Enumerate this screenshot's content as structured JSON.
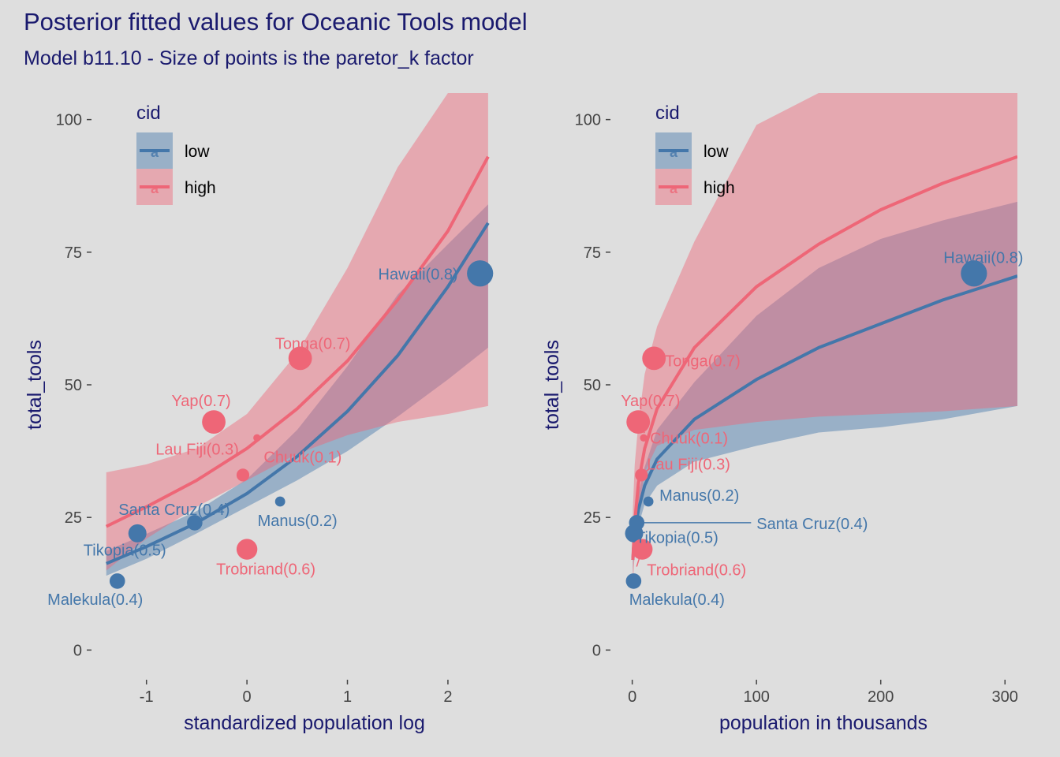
{
  "title": "Posterior fitted values for Oceanic Tools model",
  "subtitle": "Model b11.10 - Size of points is the paretor_k factor",
  "colors": {
    "low": "#4477aa",
    "high": "#ee6677"
  },
  "legend": {
    "title": "cid",
    "entries": [
      "low",
      "high"
    ],
    "key_letter": "a",
    "position": "top-left"
  },
  "chart_data": [
    {
      "type": "scatter",
      "xlabel": "standardized population log",
      "ylabel": "total_tools",
      "xlim": [
        -1.5,
        2.55
      ],
      "ylim": [
        -5,
        105
      ],
      "xticks": [
        -1,
        0,
        1,
        2
      ],
      "yticks": [
        0,
        25,
        50,
        75,
        100
      ],
      "grid": false,
      "points": [
        {
          "label": "Malekula(0.4)",
          "group": "low",
          "x": -1.29,
          "y": 13,
          "k": 0.4
        },
        {
          "label": "Tikopia(0.5)",
          "group": "low",
          "x": -1.09,
          "y": 22,
          "k": 0.5
        },
        {
          "label": "Santa Cruz(0.4)",
          "group": "low",
          "x": -0.52,
          "y": 24,
          "k": 0.4
        },
        {
          "label": "Yap(0.7)",
          "group": "high",
          "x": -0.33,
          "y": 43,
          "k": 0.7
        },
        {
          "label": "Lau Fiji(0.3)",
          "group": "high",
          "x": -0.04,
          "y": 33,
          "k": 0.3
        },
        {
          "label": "Trobriand(0.6)",
          "group": "high",
          "x": 0.0,
          "y": 19,
          "k": 0.6
        },
        {
          "label": "Chuuk(0.1)",
          "group": "high",
          "x": 0.1,
          "y": 40,
          "k": 0.1
        },
        {
          "label": "Manus(0.2)",
          "group": "low",
          "x": 0.33,
          "y": 28,
          "k": 0.2
        },
        {
          "label": "Tonga(0.7)",
          "group": "high",
          "x": 0.53,
          "y": 55,
          "k": 0.7
        },
        {
          "label": "Hawaii(0.8)",
          "group": "low",
          "x": 2.32,
          "y": 71,
          "k": 0.8
        }
      ],
      "series": [
        {
          "name": "low",
          "x": [
            -1.4,
            -1.0,
            -0.5,
            0.0,
            0.5,
            1.0,
            1.5,
            2.0,
            2.4
          ],
          "y": [
            16.3,
            19.5,
            24.0,
            29.5,
            36.5,
            45.0,
            55.5,
            68.5,
            80.5
          ],
          "lower": [
            14.0,
            17.2,
            22.0,
            27.0,
            32.0,
            37.5,
            44.0,
            51.0,
            57.0
          ],
          "upper": [
            18.7,
            21.9,
            26.2,
            32.2,
            41.5,
            53.5,
            67.0,
            76.5,
            84.0
          ]
        },
        {
          "name": "high",
          "x": [
            -1.4,
            -1.0,
            -0.5,
            0.0,
            0.5,
            1.0,
            1.5,
            2.0,
            2.4
          ],
          "y": [
            23.3,
            27.0,
            32.0,
            38.0,
            45.5,
            54.5,
            66.0,
            79.0,
            93.0
          ],
          "lower": [
            15.0,
            21.0,
            27.0,
            32.0,
            37.0,
            40.5,
            43.0,
            44.5,
            46.0
          ],
          "upper": [
            33.5,
            35.0,
            38.0,
            44.5,
            56.0,
            72.0,
            91.0,
            105.0,
            105.0
          ]
        }
      ]
    },
    {
      "type": "scatter",
      "xlabel": "population in thousands",
      "ylabel": "total_tools",
      "xlim": [
        -15,
        310
      ],
      "ylim": [
        -5,
        105
      ],
      "xticks": [
        0,
        100,
        200,
        300
      ],
      "yticks": [
        0,
        25,
        50,
        75,
        100
      ],
      "grid": false,
      "points": [
        {
          "label": "Malekula(0.4)",
          "group": "low",
          "x": 1.1,
          "y": 13,
          "k": 0.4
        },
        {
          "label": "Tikopia(0.5)",
          "group": "low",
          "x": 1.5,
          "y": 22,
          "k": 0.5
        },
        {
          "label": "Santa Cruz(0.4)",
          "group": "low",
          "x": 3.6,
          "y": 24,
          "k": 0.4
        },
        {
          "label": "Yap(0.7)",
          "group": "high",
          "x": 4.8,
          "y": 43,
          "k": 0.7
        },
        {
          "label": "Lau Fiji(0.3)",
          "group": "high",
          "x": 7.4,
          "y": 33,
          "k": 0.3
        },
        {
          "label": "Trobriand(0.6)",
          "group": "high",
          "x": 8.0,
          "y": 19,
          "k": 0.6
        },
        {
          "label": "Chuuk(0.1)",
          "group": "high",
          "x": 9.2,
          "y": 40,
          "k": 0.1
        },
        {
          "label": "Manus(0.2)",
          "group": "low",
          "x": 13.0,
          "y": 28,
          "k": 0.2
        },
        {
          "label": "Tonga(0.7)",
          "group": "high",
          "x": 17.5,
          "y": 55,
          "k": 0.7
        },
        {
          "label": "Hawaii(0.8)",
          "group": "low",
          "x": 275.0,
          "y": 71,
          "k": 0.8
        }
      ],
      "series": [
        {
          "name": "low",
          "x": [
            0.5,
            2,
            5,
            10,
            20,
            50,
            100,
            150,
            200,
            250,
            310
          ],
          "y": [
            17.0,
            22.0,
            26.5,
            31.0,
            36.0,
            43.5,
            51.0,
            57.0,
            61.5,
            66.0,
            70.5
          ],
          "lower": [
            14.5,
            19.5,
            23.5,
            27.5,
            31.0,
            35.5,
            38.5,
            41.0,
            42.0,
            43.5,
            46.0
          ],
          "upper": [
            19.5,
            24.5,
            29.5,
            34.5,
            41.5,
            50.5,
            63.0,
            72.0,
            77.5,
            81.0,
            84.5
          ]
        },
        {
          "name": "high",
          "x": [
            0.5,
            2,
            5,
            10,
            20,
            50,
            100,
            150,
            200,
            250,
            310
          ],
          "y": [
            17.0,
            24.0,
            31.5,
            38.0,
            45.5,
            57.0,
            68.5,
            76.5,
            83.0,
            88.0,
            93.0
          ],
          "lower": [
            12.0,
            18.5,
            26.0,
            33.5,
            38.5,
            41.5,
            43.0,
            44.0,
            44.5,
            45.0,
            46.0
          ],
          "upper": [
            26.5,
            35.0,
            43.0,
            52.0,
            61.0,
            77.0,
            99.0,
            105.0,
            105.0,
            105.0,
            105.0
          ]
        }
      ]
    }
  ]
}
